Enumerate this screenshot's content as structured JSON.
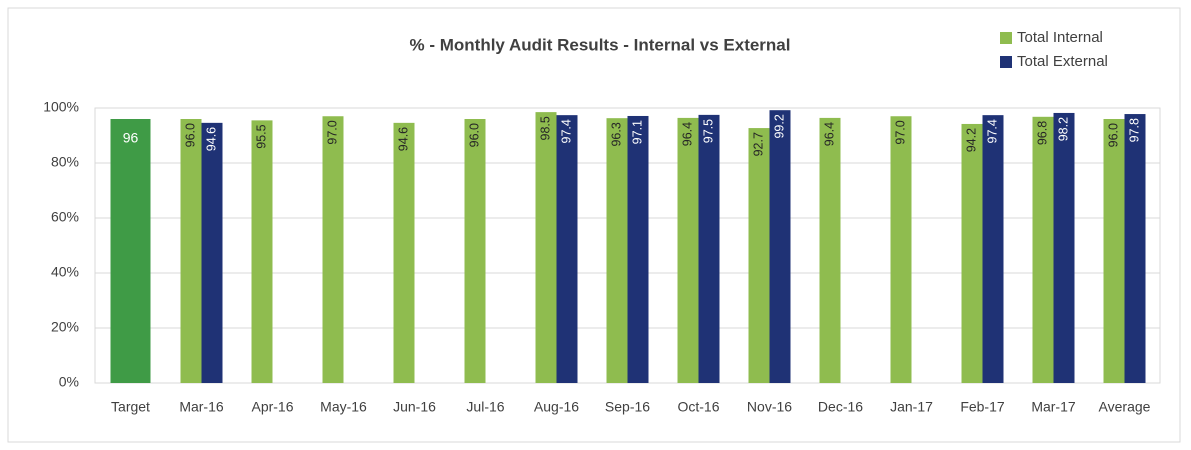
{
  "chart_data": {
    "type": "bar",
    "title": "% - Monthly Audit Results - Internal vs External",
    "categories": [
      "Target",
      "Mar-16",
      "Apr-16",
      "May-16",
      "Jun-16",
      "Jul-16",
      "Aug-16",
      "Sep-16",
      "Oct-16",
      "Nov-16",
      "Dec-16",
      "Jan-17",
      "Feb-17",
      "Mar-17",
      "Average"
    ],
    "target": {
      "category_index": 0,
      "value": 96,
      "color": "#3f9b46"
    },
    "series": [
      {
        "name": "Total Internal",
        "color": "#8fbc4f",
        "values": [
          null,
          96.0,
          95.5,
          97.0,
          94.6,
          96.0,
          98.5,
          96.3,
          96.4,
          92.7,
          96.4,
          97.0,
          94.2,
          96.8,
          96.0
        ],
        "value_labels": [
          null,
          "96.0",
          "95.5",
          "97.0",
          "94.6",
          "96.0",
          "98.5",
          "96.3",
          "96.4",
          "92.7",
          "96.4",
          "97.0",
          "94.2",
          "96.8",
          "96.0"
        ]
      },
      {
        "name": "Total External",
        "color": "#1f3275",
        "values": [
          null,
          94.6,
          null,
          null,
          null,
          null,
          97.4,
          97.1,
          97.5,
          99.2,
          null,
          null,
          97.4,
          98.2,
          97.8
        ],
        "value_labels": [
          null,
          "94.6",
          null,
          null,
          null,
          null,
          "97.4",
          "97.1",
          "97.5",
          "99.2",
          null,
          null,
          "97.4",
          "98.2",
          "97.8"
        ]
      }
    ],
    "ylim": [
      0,
      100
    ],
    "yticks": [
      {
        "value": 0,
        "label": "0%"
      },
      {
        "value": 20,
        "label": "20%"
      },
      {
        "value": 40,
        "label": "40%"
      },
      {
        "value": 60,
        "label": "60%"
      },
      {
        "value": 80,
        "label": "80%"
      },
      {
        "value": 100,
        "label": "100%"
      }
    ],
    "grid": true,
    "legend": "top-right"
  }
}
